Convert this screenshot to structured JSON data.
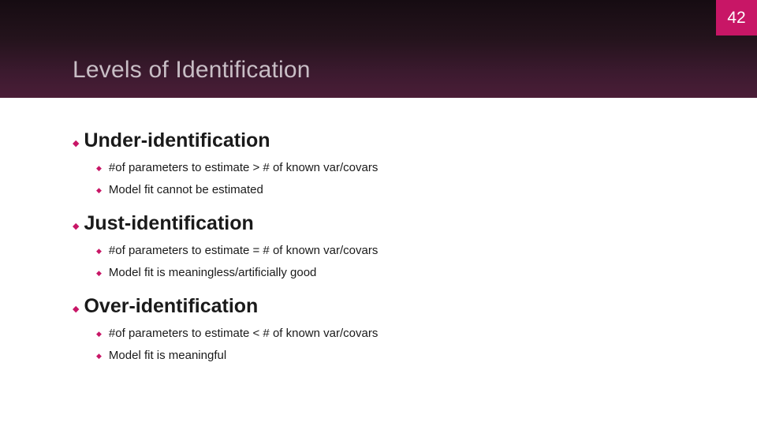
{
  "slide": {
    "number": "42",
    "title": "Levels of Identification",
    "header_gradient": [
      "#160c12",
      "#24131c",
      "#3c1a2f",
      "#4a1d37"
    ],
    "accent_color": "#c81666",
    "corner_text_color": "#ffffff",
    "title_color": "#c8bec5",
    "text_color": "#1a1a1a"
  },
  "content": {
    "sections": [
      {
        "heading": "Under-identification",
        "points": [
          "#of parameters to estimate > # of known var/covars",
          "Model fit cannot be estimated"
        ]
      },
      {
        "heading": "Just-identification",
        "points": [
          "#of parameters to estimate = # of known var/covars",
          "Model fit is meaningless/artificially good"
        ]
      },
      {
        "heading": "Over-identification",
        "points": [
          "#of parameters to estimate < # of known var/covars",
          "Model fit is meaningful"
        ]
      }
    ]
  }
}
